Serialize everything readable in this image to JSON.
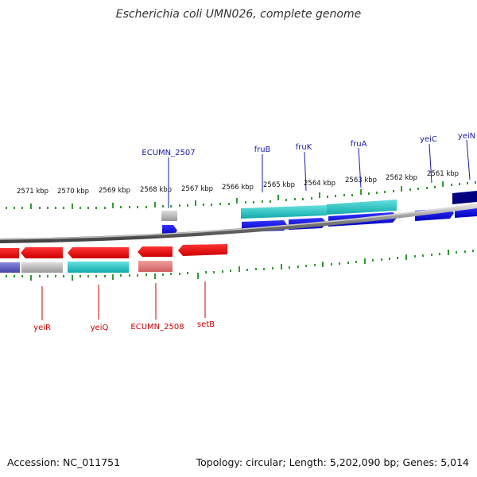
{
  "title": "Escherichia coli UMN026, complete genome",
  "footer": {
    "accession": "Accession: NC_011751",
    "summary": "Topology: circular; Length: 5,202,090 bp; Genes: 5,014"
  },
  "colors": {
    "forward_gene": "#0000ee",
    "reverse_gene": "#ee0000",
    "forward_label": "#1a1aaa",
    "reverse_label": "#cc0000",
    "tick": "#339933",
    "backbone": "#777777",
    "product_cyan": "#22cccc",
    "product_grey": "#bbbbbb",
    "product_pink": "#e88888",
    "product_navy": "#000080",
    "product_slate": "#6666cc"
  },
  "scale_labels": [
    "2571 kbp",
    "2570 kbp",
    "2569 kbp",
    "2568 kbp",
    "2567 kbp",
    "2566 kbp",
    "2565 kbp",
    "2564 kbp",
    "2563 kbp",
    "2562 kbp",
    "2561 kbp"
  ],
  "forward_gene_labels": [
    "ECUMN_2507",
    "fruB",
    "fruK",
    "fruA",
    "yeiC",
    "yeiN"
  ],
  "reverse_gene_labels": [
    "yeiR",
    "yeiQ",
    "ECUMN_2508",
    "setB"
  ]
}
